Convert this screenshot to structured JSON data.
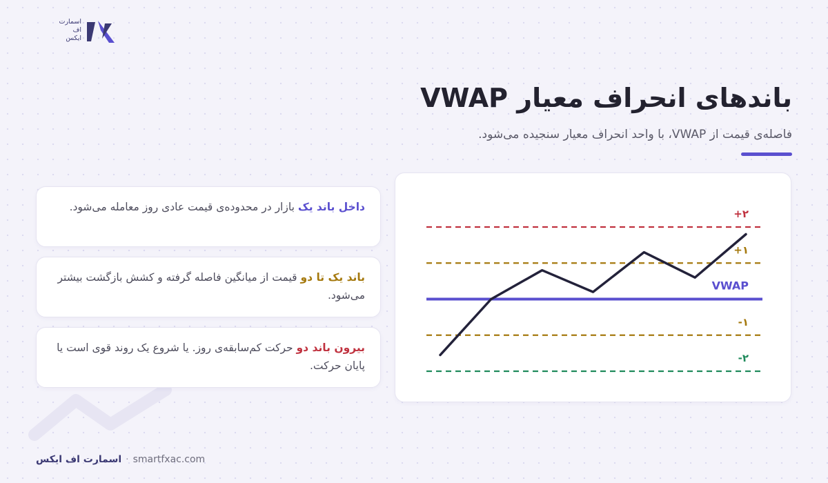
{
  "logo": {
    "lines": [
      "اسمارت",
      "اف",
      "ایکس"
    ]
  },
  "header": {
    "title": "باندهای انحراف معیار VWAP",
    "subtitle": "فاصله‌ی قیمت از VWAP، با واحد انحراف معیار سنجیده می‌شود."
  },
  "cards": [
    {
      "highlight": "داخل باند یک",
      "text": " بازار در محدوده‌ی قیمت عادی روز معامله می‌شود.",
      "highlight_color": "#5a4fcf"
    },
    {
      "highlight": "باند یک تا دو",
      "text": " قیمت از میانگین فاصله گرفته و کشش بازگشت بیشتر می‌شود.",
      "highlight_color": "#a5790e"
    },
    {
      "highlight": "بیرون باند دو",
      "text": " حرکت کم‌سابقه‌ی روز. یا شروع یک روند قوی است یا پایان حرکت.",
      "highlight_color": "#c0323f"
    }
  ],
  "chart_data": {
    "type": "line",
    "bands": [
      {
        "label": "+۲",
        "value": 2,
        "color": "#c0323f",
        "style": "dashed"
      },
      {
        "label": "+۱",
        "value": 1,
        "color": "#a5790e",
        "style": "dashed"
      },
      {
        "label": "VWAP",
        "value": 0,
        "color": "#5a4fcf",
        "style": "solid"
      },
      {
        "label": "-۱",
        "value": -1,
        "color": "#a5790e",
        "style": "dashed"
      },
      {
        "label": "-۲",
        "value": -2,
        "color": "#1f8a5b",
        "style": "dashed"
      }
    ],
    "series": [
      {
        "values": [
          -1.55,
          0.0,
          0.8,
          0.2,
          1.3,
          0.6,
          1.8
        ],
        "color": "#23223a"
      }
    ],
    "ylim": [
      -2,
      2
    ]
  },
  "footer": {
    "brand": "اسمارت اف ایکس",
    "separator": "·",
    "site": "smartfxac.com"
  }
}
